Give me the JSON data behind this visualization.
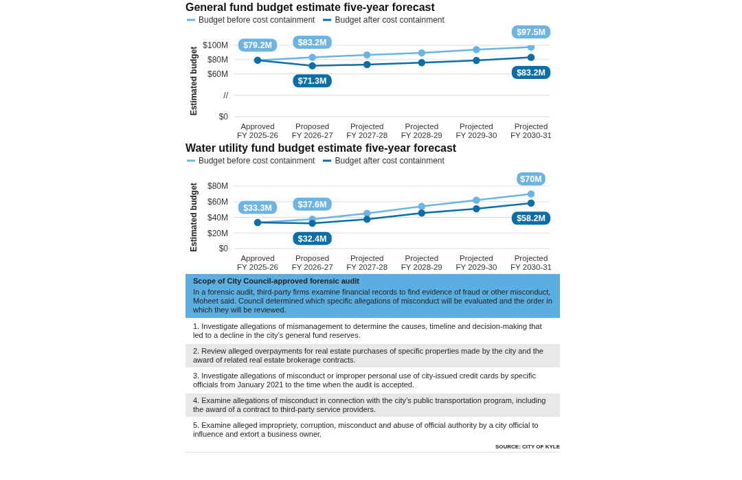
{
  "chart_data": [
    {
      "type": "line",
      "title": "General fund budget estimate five-year forecast",
      "ylabel": "Estimated budget",
      "categories": [
        "Approved FY 2025-26",
        "Proposed FY 2026-27",
        "Projected FY 2027-28",
        "Projected FY 2028-29",
        "Projected FY 2029-30",
        "Projected FY 2030-31"
      ],
      "series": [
        {
          "name": "Budget before cost containment",
          "color": "#6cb4e4",
          "values": [
            79.2,
            83.2,
            86.5,
            89.5,
            94,
            97.5
          ],
          "value_labels": [
            "$79.2M",
            "$83.2M",
            null,
            null,
            null,
            "$97.5M"
          ]
        },
        {
          "name": "Budget after cost containment",
          "color": "#0b6ea8",
          "values": [
            79.2,
            71.3,
            73,
            75.8,
            78.8,
            83.2
          ],
          "value_labels": [
            null,
            "$71.3M",
            null,
            null,
            null,
            "$83.2M"
          ]
        }
      ],
      "ylim": [
        0,
        100
      ],
      "yticks": [
        {
          "value": 0,
          "label": "$0"
        },
        {
          "value": 30,
          "label": "//"
        },
        {
          "value": 60,
          "label": "$60M"
        },
        {
          "value": 80,
          "label": "$80M"
        },
        {
          "value": 100,
          "label": "$100M"
        }
      ],
      "grid": "y",
      "legend": "top left",
      "marker": "circle",
      "line_style": "solid"
    },
    {
      "type": "line",
      "title": "Water utility fund budget estimate five-year forecast",
      "ylabel": "Estimated budget",
      "categories": [
        "Approved FY 2025-26",
        "Proposed FY 2026-27",
        "Projected FY 2027-28",
        "Projected FY 2028-29",
        "Projected FY 2029-30",
        "Projected FY 2030-31"
      ],
      "series": [
        {
          "name": "Budget before cost containment",
          "color": "#6cb4e4",
          "values": [
            33.3,
            37.6,
            45,
            54,
            62,
            70
          ],
          "value_labels": [
            "$33.3M",
            "$37.6M",
            null,
            null,
            null,
            "$70M"
          ]
        },
        {
          "name": "Budget after cost containment",
          "color": "#0b6ea8",
          "values": [
            33.3,
            32.4,
            37.5,
            45.5,
            51,
            58.2
          ],
          "value_labels": [
            null,
            "$32.4M",
            null,
            null,
            null,
            "$58.2M"
          ]
        }
      ],
      "ylim": [
        0,
        80
      ],
      "yticks": [
        {
          "value": 0,
          "label": "$0"
        },
        {
          "value": 20,
          "label": "$20M"
        },
        {
          "value": 40,
          "label": "$40M"
        },
        {
          "value": 60,
          "label": "$60M"
        },
        {
          "value": 80,
          "label": "$80M"
        }
      ],
      "grid": "y",
      "legend": "top left",
      "marker": "circle",
      "line_style": "solid"
    },
    {
      "type": "other",
      "title": "Scope of City Council-approved forensic audit",
      "subtitle": "In a forensic audit, third-party firms examine financial records to find evidence of fraud or other misconduct, Moheet said. Council determined which specific allegations of misconduct will be evaluated and the order in which they will be reviewed.",
      "annotations": [
        "1. Investigate allegations of mismanagement to determine the causes, timeline and decision-making that led to a decline in the city’s general fund reserves.",
        "2. Review alleged overpayments for real estate purchases of specific properties made by the city and the award of related real estate brokerage contracts.",
        "3. Investigate allegations of misconduct or improper personal use of city-issued credit cards by specific officials from January 2021 to the time when the audit is accepted.",
        "4. Examine allegations of misconduct in connection with the city’s public transportation program, including the award of a contract to third-party service providers.",
        "5. Examine alleged impropriety, corruption, misconduct and abuse of official authority by a city official to influence and extort a business owner.",
        "SOURCE: CITY OF KYLE"
      ]
    }
  ]
}
